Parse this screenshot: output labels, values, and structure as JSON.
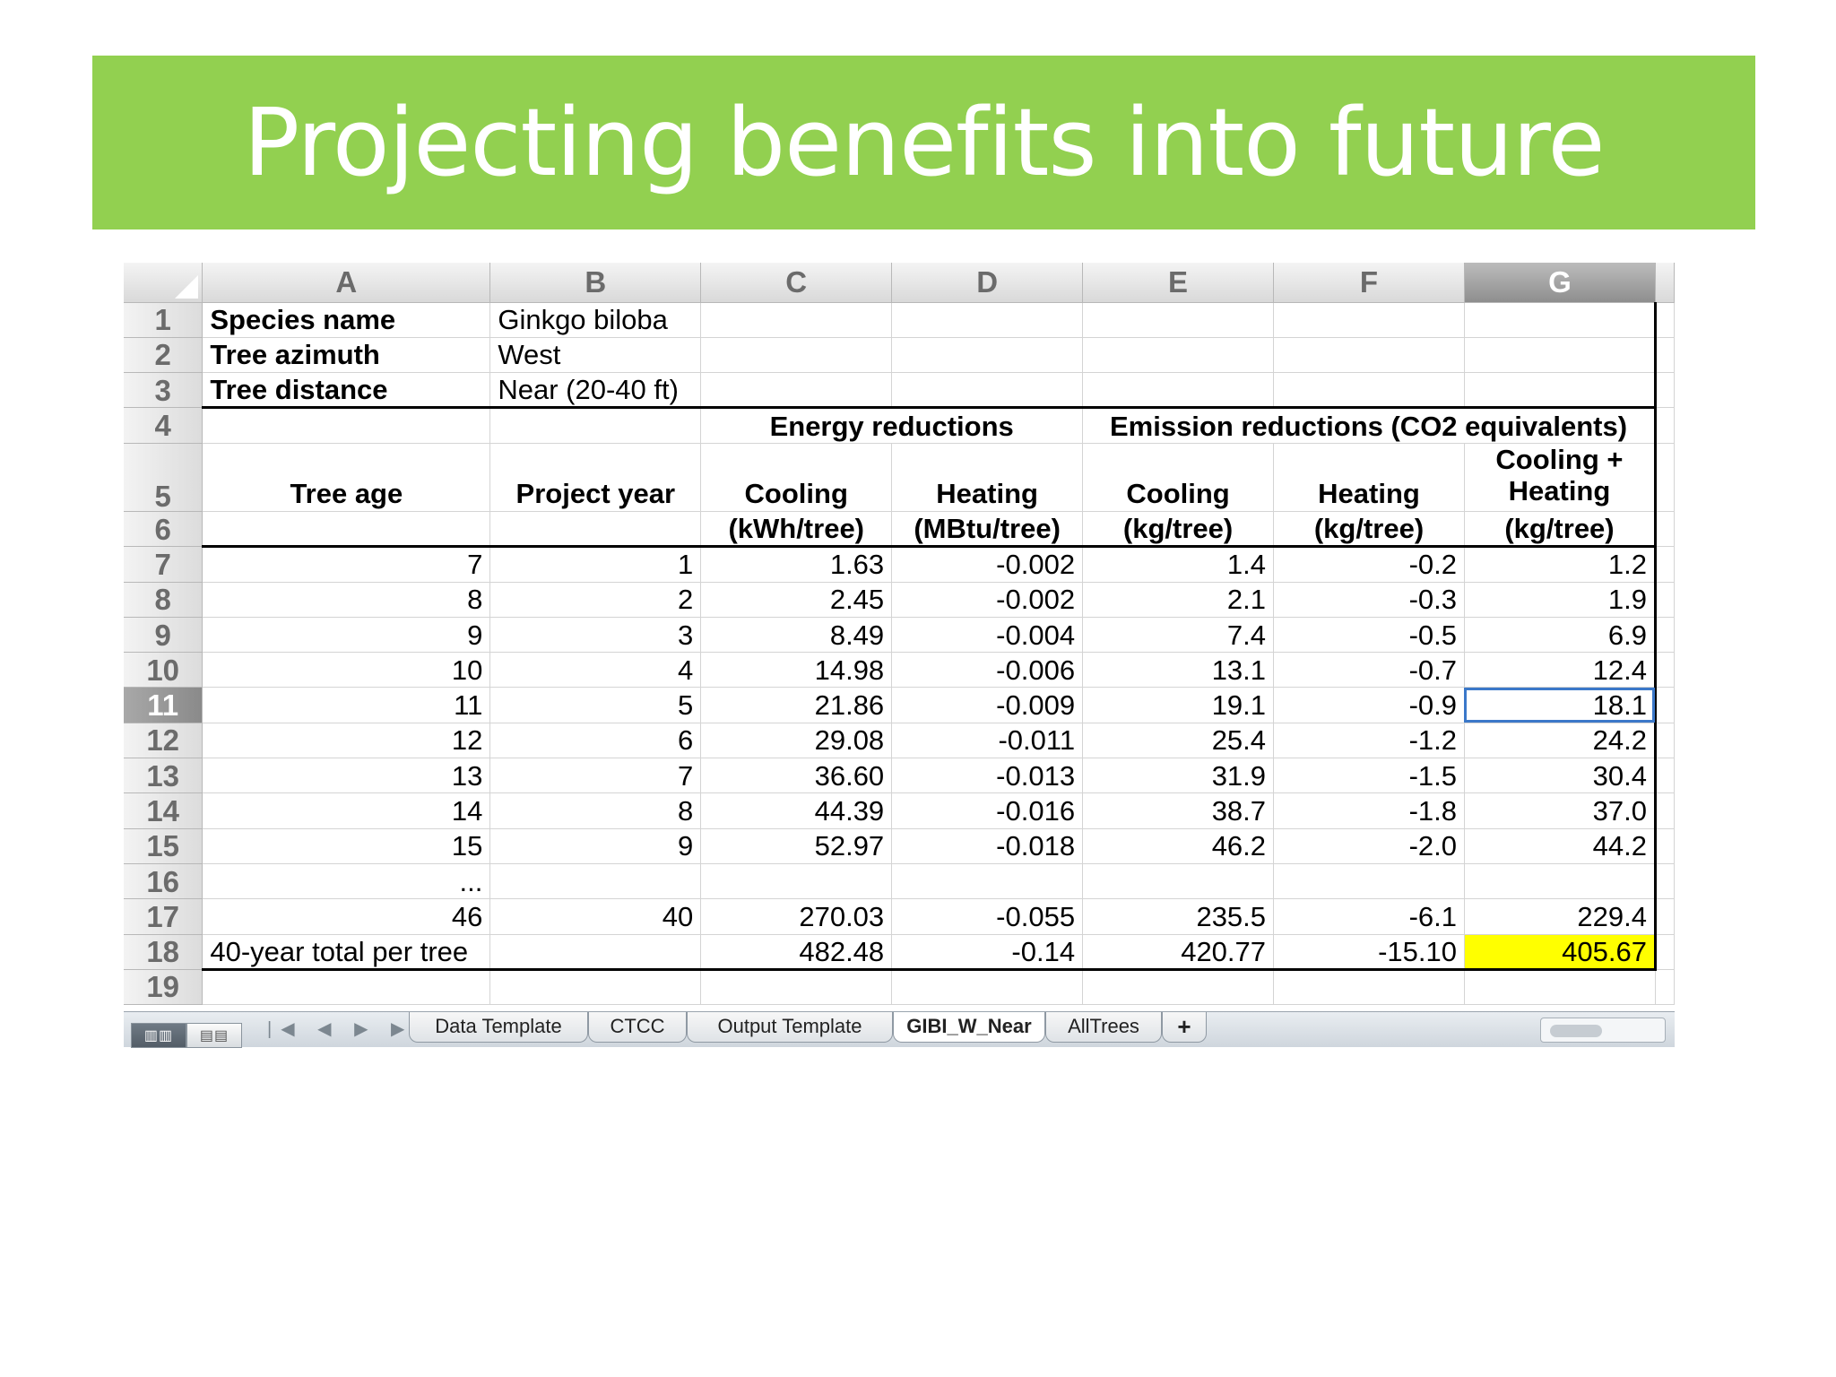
{
  "slide": {
    "title": "Projecting benefits into future",
    "banner_color": "#92d050"
  },
  "sheet": {
    "columns": [
      "A",
      "B",
      "C",
      "D",
      "E",
      "F",
      "G"
    ],
    "selected_column": "G",
    "selected_row": "11",
    "row_numbers": [
      "1",
      "2",
      "3",
      "4",
      "5",
      "6",
      "7",
      "8",
      "9",
      "10",
      "11",
      "12",
      "13",
      "14",
      "15",
      "16",
      "17",
      "18",
      "19"
    ],
    "info": {
      "species_label": "Species name",
      "species_value": "Ginkgo biloba",
      "azimuth_label": "Tree azimuth",
      "azimuth_value": "West",
      "distance_label": "Tree distance",
      "distance_value": "Near (20-40 ft)"
    },
    "group_headers": {
      "energy": "Energy reductions",
      "emission": "Emission reductions (CO2 equivalents)"
    },
    "headers_row5": {
      "tree_age": "Tree age",
      "project_year": "Project year",
      "cooling": "Cooling",
      "heating": "Heating",
      "em_cooling": "Cooling",
      "em_heating": "Heating",
      "total_line1": "Cooling +",
      "total_line2": "Heating"
    },
    "headers_row6": {
      "cooling_unit": "(kWh/tree)",
      "heating_unit": "(MBtu/tree)",
      "em_cooling_unit": "(kg/tree)",
      "em_heating_unit": "(kg/tree)",
      "total_unit": "(kg/tree)"
    },
    "data_rows": [
      [
        "7",
        "1",
        "1.63",
        "-0.002",
        "1.4",
        "-0.2",
        "1.2"
      ],
      [
        "8",
        "2",
        "2.45",
        "-0.002",
        "2.1",
        "-0.3",
        "1.9"
      ],
      [
        "9",
        "3",
        "8.49",
        "-0.004",
        "7.4",
        "-0.5",
        "6.9"
      ],
      [
        "10",
        "4",
        "14.98",
        "-0.006",
        "13.1",
        "-0.7",
        "12.4"
      ],
      [
        "11",
        "5",
        "21.86",
        "-0.009",
        "19.1",
        "-0.9",
        "18.1"
      ],
      [
        "12",
        "6",
        "29.08",
        "-0.011",
        "25.4",
        "-1.2",
        "24.2"
      ],
      [
        "13",
        "7",
        "36.60",
        "-0.013",
        "31.9",
        "-1.5",
        "30.4"
      ],
      [
        "14",
        "8",
        "44.39",
        "-0.016",
        "38.7",
        "-1.8",
        "37.0"
      ],
      [
        "15",
        "9",
        "52.97",
        "-0.018",
        "46.2",
        "-2.0",
        "44.2"
      ],
      [
        "...",
        "",
        "",
        "",
        "",
        "",
        ""
      ],
      [
        "46",
        "40",
        "270.03",
        "-0.055",
        "235.5",
        "-6.1",
        "229.4"
      ]
    ],
    "total_row": {
      "label": "40-year total per tree",
      "cooling": "482.48",
      "heating": "-0.14",
      "em_cooling": "420.77",
      "em_heating": "-15.10",
      "total": "405.67"
    },
    "highlight_color": "#ffff00",
    "selection_color": "#3b78c9"
  },
  "tabs": {
    "items": [
      "Data Template",
      "CTCC",
      "Output Template",
      "GIBI_W_Near",
      "AllTrees"
    ],
    "active": "GIBI_W_Near",
    "add_label": "+",
    "nav_arrows": "|◀ ◀ ▶ ▶|",
    "view_normal": "▥▥",
    "view_layout": "▤▤"
  }
}
